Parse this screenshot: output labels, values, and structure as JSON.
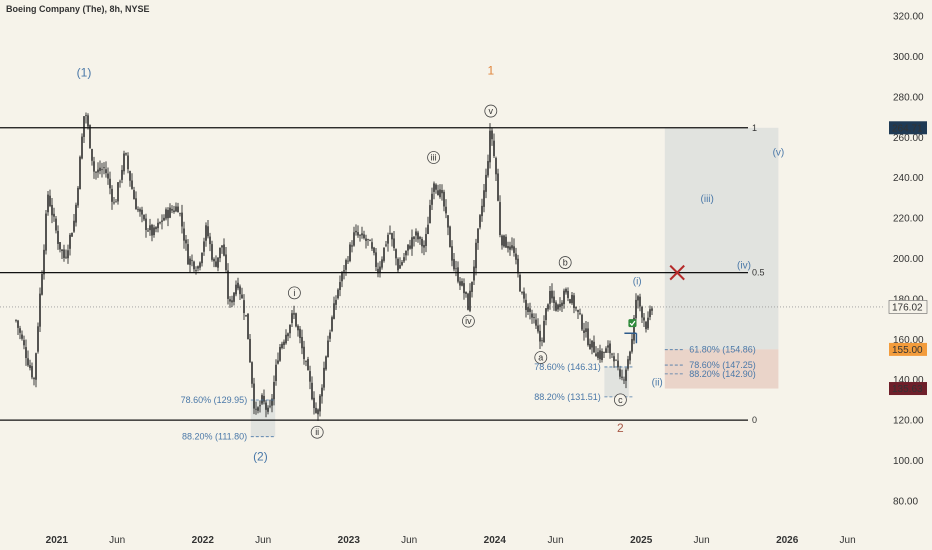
{
  "header": {
    "symbol_title": "Boeing Company (The), 8h, NYSE"
  },
  "colors": {
    "background": "#f6f3ea",
    "candle": "#111111",
    "wave_blue": "#4a78a8",
    "wave_orange": "#e0843a",
    "wave_red": "#a85a48",
    "x_mark": "#b52a2a",
    "zone_gray": "#d8dcda",
    "zone_red": "#e6c9bd",
    "tag_current": "#1f3a55",
    "tag_orange": "#f39c3c",
    "tag_red": "#6e1f2a"
  },
  "chart_data": {
    "type": "candlestick",
    "title": "Boeing Company (The), 8h, NYSE",
    "ylim": [
      75,
      325
    ],
    "y_ticks": [
      "320.00",
      "300.00",
      "280.00",
      "260.00",
      "240.00",
      "220.00",
      "200.00",
      "180.00",
      "160.00",
      "140.00",
      "120.00",
      "100.00",
      "80.00"
    ],
    "x_ticks": [
      "2021",
      "Jun",
      "2022",
      "Jun",
      "2023",
      "Jun",
      "2024",
      "Jun",
      "2025",
      "Jun",
      "2026",
      "Jun"
    ],
    "price_path": [
      [
        "2020-09-20",
        170
      ],
      [
        "2020-10-20",
        150
      ],
      [
        "2020-11-05",
        140
      ],
      [
        "2020-11-20",
        182
      ],
      [
        "2020-12-10",
        232
      ],
      [
        "2021-01-05",
        208
      ],
      [
        "2021-01-20",
        200
      ],
      [
        "2021-02-15",
        220
      ],
      [
        "2021-03-12",
        275
      ],
      [
        "2021-04-05",
        242
      ],
      [
        "2021-05-01",
        245
      ],
      [
        "2021-05-25",
        226
      ],
      [
        "2021-06-20",
        252
      ],
      [
        "2021-07-15",
        228
      ],
      [
        "2021-08-05",
        218
      ],
      [
        "2021-08-30",
        212
      ],
      [
        "2021-10-01",
        222
      ],
      [
        "2021-11-01",
        226
      ],
      [
        "2021-11-25",
        200
      ],
      [
        "2021-12-20",
        196
      ],
      [
        "2022-01-10",
        215
      ],
      [
        "2022-01-30",
        196
      ],
      [
        "2022-02-20",
        208
      ],
      [
        "2022-03-08",
        175
      ],
      [
        "2022-03-28",
        190
      ],
      [
        "2022-04-20",
        170
      ],
      [
        "2022-05-12",
        122
      ],
      [
        "2022-05-30",
        130
      ],
      [
        "2022-06-16",
        122
      ],
      [
        "2022-07-10",
        155
      ],
      [
        "2022-08-01",
        165
      ],
      [
        "2022-08-16",
        173
      ],
      [
        "2022-09-12",
        150
      ],
      [
        "2022-10-14",
        121
      ],
      [
        "2022-11-10",
        160
      ],
      [
        "2022-12-05",
        185
      ],
      [
        "2023-01-15",
        212
      ],
      [
        "2023-02-20",
        208
      ],
      [
        "2023-03-15",
        194
      ],
      [
        "2023-04-12",
        214
      ],
      [
        "2023-05-05",
        195
      ],
      [
        "2023-06-15",
        212
      ],
      [
        "2023-07-10",
        205
      ],
      [
        "2023-07-31",
        240
      ],
      [
        "2023-08-25",
        228
      ],
      [
        "2023-09-20",
        196
      ],
      [
        "2023-10-12",
        186
      ],
      [
        "2023-10-27",
        176
      ],
      [
        "2023-11-15",
        205
      ],
      [
        "2023-12-10",
        240
      ],
      [
        "2023-12-22",
        265
      ],
      [
        "2024-01-05",
        240
      ],
      [
        "2024-01-15",
        210
      ],
      [
        "2024-02-15",
        205
      ],
      [
        "2024-03-10",
        180
      ],
      [
        "2024-04-01",
        172
      ],
      [
        "2024-04-25",
        158
      ],
      [
        "2024-05-15",
        182
      ],
      [
        "2024-06-05",
        175
      ],
      [
        "2024-06-25",
        185
      ],
      [
        "2024-07-15",
        178
      ],
      [
        "2024-08-05",
        168
      ],
      [
        "2024-08-25",
        158
      ],
      [
        "2024-09-20",
        152
      ],
      [
        "2024-10-10",
        155
      ],
      [
        "2024-10-25",
        152
      ],
      [
        "2024-11-10",
        138
      ],
      [
        "2024-11-20",
        143
      ],
      [
        "2024-12-10",
        160
      ],
      [
        "2024-12-20",
        182
      ],
      [
        "2025-01-05",
        172
      ],
      [
        "2025-01-15",
        166
      ],
      [
        "2025-01-31",
        178
      ]
    ],
    "horizontal_levels": [
      {
        "label": "1",
        "price": 264.71
      },
      {
        "label": "0.5",
        "price": 193
      },
      {
        "label": "0",
        "price": 120
      }
    ],
    "current_price": {
      "date": "2025-01-31",
      "price": 176.02
    },
    "price_tags": [
      {
        "text": "264.71",
        "price": 264.71,
        "color_key": "tag_current"
      },
      {
        "text": "176.02",
        "price": 176.02,
        "color_key": "plain"
      },
      {
        "text": "155.00",
        "price": 155.0,
        "color_key": "tag_orange"
      },
      {
        "text": "135.63",
        "price": 135.63,
        "color_key": "tag_red"
      }
    ],
    "zones": [
      {
        "name": "target-zone-gray",
        "from_date": "2025-03-01",
        "to_date": "2025-12-10",
        "top": 264.71,
        "bottom": 155.0,
        "color_key": "zone_gray"
      },
      {
        "name": "target-zone-red",
        "from_date": "2025-03-01",
        "to_date": "2025-12-10",
        "top": 155.0,
        "bottom": 135.63,
        "color_key": "zone_red"
      },
      {
        "name": "support-box-2022",
        "from_date": "2022-05-01",
        "to_date": "2022-07-01",
        "top": 129.95,
        "bottom": 111.8,
        "color_key": "zone_gray"
      },
      {
        "name": "support-box-2024",
        "from_date": "2024-10-01",
        "to_date": "2024-12-01",
        "top": 146.31,
        "bottom": 131.51,
        "color_key": "zone_gray"
      }
    ],
    "fib_annotations": [
      {
        "text": "78.60% (129.95)",
        "price": 129.95,
        "line_from": "2022-05-01",
        "line_to": "2022-07-01",
        "label_anchor_date": "2022-04-22",
        "align": "end"
      },
      {
        "text": "88.20% (111.80)",
        "price": 111.8,
        "line_from": "2022-05-01",
        "line_to": "2022-07-01",
        "label_anchor_date": "2022-04-22",
        "align": "end"
      },
      {
        "text": "78.60% (146.31)",
        "price": 146.31,
        "line_from": "2024-10-01",
        "line_to": "2024-12-15",
        "label_anchor_date": "2024-09-22",
        "align": "end"
      },
      {
        "text": "88.20% (131.51)",
        "price": 131.51,
        "line_from": "2024-10-01",
        "line_to": "2024-12-15",
        "label_anchor_date": "2024-09-22",
        "align": "end"
      },
      {
        "text": "61.80% (154.86)",
        "price": 154.86,
        "line_from": "2025-03-01",
        "line_to": "2025-04-20",
        "label_anchor_date": "2025-05-01",
        "align": "start"
      },
      {
        "text": "78.60% (147.25)",
        "price": 147.25,
        "line_from": "2025-03-01",
        "line_to": "2025-04-20",
        "label_anchor_date": "2025-05-01",
        "align": "start"
      },
      {
        "text": "88.20% (142.90)",
        "price": 142.9,
        "line_from": "2025-03-01",
        "line_to": "2025-04-20",
        "label_anchor_date": "2025-05-01",
        "align": "start"
      }
    ],
    "wave_labels": [
      {
        "text": "(1)",
        "date": "2021-03-10",
        "price": 292,
        "style": "plain",
        "color_key": "wave_blue",
        "size": 12
      },
      {
        "text": "(2)",
        "date": "2022-05-25",
        "price": 102,
        "style": "plain",
        "color_key": "wave_blue",
        "size": 12
      },
      {
        "text": "i",
        "date": "2022-08-18",
        "price": 183,
        "style": "circled",
        "color_key": "wave_blue",
        "size": 9
      },
      {
        "text": "ii",
        "date": "2022-10-14",
        "price": 114,
        "style": "circled",
        "color_key": "wave_blue",
        "size": 9
      },
      {
        "text": "iii",
        "date": "2023-08-01",
        "price": 250,
        "style": "circled",
        "color_key": "wave_blue",
        "size": 9
      },
      {
        "text": "iv",
        "date": "2023-10-27",
        "price": 169,
        "style": "circled",
        "color_key": "wave_blue",
        "size": 9
      },
      {
        "text": "v",
        "date": "2023-12-22",
        "price": 273,
        "style": "circled",
        "color_key": "wave_blue",
        "size": 9
      },
      {
        "text": "1",
        "date": "2023-12-22",
        "price": 293,
        "style": "plain",
        "color_key": "wave_orange",
        "size": 12
      },
      {
        "text": "a",
        "date": "2024-04-25",
        "price": 151,
        "style": "circled",
        "color_key": "wave_blue",
        "size": 9
      },
      {
        "text": "b",
        "date": "2024-06-25",
        "price": 198,
        "style": "circled",
        "color_key": "wave_blue",
        "size": 9
      },
      {
        "text": "c",
        "date": "2024-11-10",
        "price": 130,
        "style": "circled",
        "color_key": "wave_blue",
        "size": 9
      },
      {
        "text": "2",
        "date": "2024-11-10",
        "price": 116,
        "style": "plain",
        "color_key": "wave_red",
        "size": 12
      },
      {
        "text": "(i)",
        "date": "2024-12-22",
        "price": 189,
        "style": "plain",
        "color_key": "wave_blue",
        "size": 10
      },
      {
        "text": "(ii)",
        "date": "2025-02-10",
        "price": 139,
        "style": "plain",
        "color_key": "wave_blue",
        "size": 10
      },
      {
        "text": "(iii)",
        "date": "2025-06-15",
        "price": 230,
        "style": "plain",
        "color_key": "wave_blue",
        "size": 10
      },
      {
        "text": "(iv)",
        "date": "2025-09-15",
        "price": 197,
        "style": "plain",
        "color_key": "wave_blue",
        "size": 10
      },
      {
        "text": "(v)",
        "date": "2025-12-10",
        "price": 253,
        "style": "plain",
        "color_key": "wave_blue",
        "size": 10
      }
    ],
    "markers": {
      "x_mark": {
        "date": "2025-04-01",
        "price": 193
      },
      "check_mark": {
        "date": "2024-12-10",
        "price": 168
      },
      "breakout_line": {
        "from_date": "2024-11-20",
        "to_date": "2024-12-20",
        "price": 163
      }
    }
  }
}
